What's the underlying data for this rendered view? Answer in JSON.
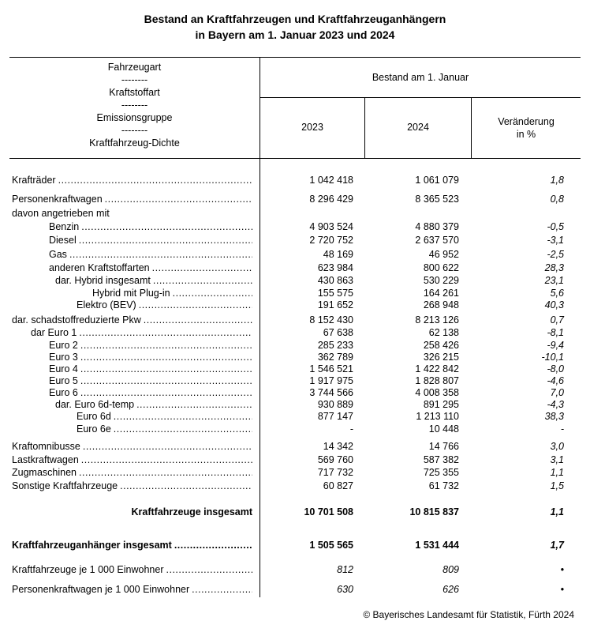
{
  "title": {
    "line1": "Bestand an Kraftfahrzeugen und Kraftfahrzeuganhängern",
    "line2": "in Bayern am 1. Januar 2023 und 2024"
  },
  "header": {
    "stub": [
      "Fahrzeugart",
      "--------",
      "Kraftstoffart",
      "--------",
      "Emissionsgruppe",
      "--------",
      "Kraftfahrzeug-Dichte"
    ],
    "group": "Bestand am 1. Januar",
    "col_2023": "2023",
    "col_2024": "2024",
    "col_change_1": "Veränderung",
    "col_change_2": "in %"
  },
  "rows": [
    {
      "label": "Krafträder",
      "v2023": "1 042 418",
      "v2024": "1 061 079",
      "change": "1,8"
    },
    {
      "label": "Personenkraftwagen",
      "v2023": "8 296 429",
      "v2024": "8 365 523",
      "change": "0,8"
    },
    {
      "label": "davon angetrieben mit",
      "v2023": "",
      "v2024": "",
      "change": ""
    },
    {
      "label": "Benzin",
      "v2023": "4 903 524",
      "v2024": "4 880 379",
      "change": "-0,5"
    },
    {
      "label": "Diesel",
      "v2023": "2 720 752",
      "v2024": "2 637 570",
      "change": "-3,1"
    },
    {
      "label": "Gas",
      "v2023": "48 169",
      "v2024": "46 952",
      "change": "-2,5"
    },
    {
      "label": "anderen Kraftstoffarten",
      "v2023": "623 984",
      "v2024": "800 622",
      "change": "28,3"
    },
    {
      "label": "dar. Hybrid insgesamt",
      "v2023": "430 863",
      "v2024": "530 229",
      "change": "23,1"
    },
    {
      "label": "Hybrid mit Plug-in",
      "v2023": "155 575",
      "v2024": "164 261",
      "change": "5,6"
    },
    {
      "label": "Elektro (BEV)",
      "v2023": "191 652",
      "v2024": "268 948",
      "change": "40,3"
    },
    {
      "label": "dar. schadstoffreduzierte Pkw",
      "v2023": "8 152 430",
      "v2024": "8 213 126",
      "change": "0,7"
    },
    {
      "label": "dar Euro 1",
      "v2023": "67 638",
      "v2024": "62 138",
      "change": "-8,1"
    },
    {
      "label": "Euro 2",
      "v2023": "285 233",
      "v2024": "258 426",
      "change": "-9,4"
    },
    {
      "label": "Euro 3",
      "v2023": "362 789",
      "v2024": "326 215",
      "change": "-10,1"
    },
    {
      "label": "Euro 4",
      "v2023": "1 546 521",
      "v2024": "1 422 842",
      "change": "-8,0"
    },
    {
      "label": "Euro 5",
      "v2023": "1 917 975",
      "v2024": "1 828 807",
      "change": "-4,6"
    },
    {
      "label": "Euro 6",
      "v2023": "3 744 566",
      "v2024": "4 008 358",
      "change": "7,0"
    },
    {
      "label": "dar. Euro 6d-temp",
      "v2023": "930 889",
      "v2024": "891 295",
      "change": "-4,3"
    },
    {
      "label": "Euro 6d",
      "v2023": "877 147",
      "v2024": "1 213 110",
      "change": "38,3"
    },
    {
      "label": "Euro 6e",
      "v2023": "-",
      "v2024": "10 448",
      "change": "-"
    },
    {
      "label": "Kraftomnibusse",
      "v2023": "14 342",
      "v2024": "14 766",
      "change": "3,0"
    },
    {
      "label": "Lastkraftwagen",
      "v2023": "569 760",
      "v2024": "587 382",
      "change": "3,1"
    },
    {
      "label": "Zugmaschinen",
      "v2023": "717 732",
      "v2024": "725 355",
      "change": "1,1"
    },
    {
      "label": "Sonstige Kraftfahrzeuge",
      "v2023": "60 827",
      "v2024": "61 732",
      "change": "1,5"
    },
    {
      "label": "Kraftfahrzeuge insgesamt",
      "v2023": "10 701 508",
      "v2024": "10 815 837",
      "change": "1,1"
    },
    {
      "label": "Kraftfahrzeuganhänger insgesamt",
      "v2023": "1 505 565",
      "v2024": "1 531 444",
      "change": "1,7"
    },
    {
      "label": "Kraftfahrzeuge je 1 000 Einwohner",
      "v2023": "812",
      "v2024": "809",
      "change": "•"
    },
    {
      "label": "Personenkraftwagen je 1 000 Einwohner",
      "v2023": "630",
      "v2024": "626",
      "change": "•"
    }
  ],
  "footer": "© Bayerisches Landesamt für Statistik, Fürth 2024"
}
